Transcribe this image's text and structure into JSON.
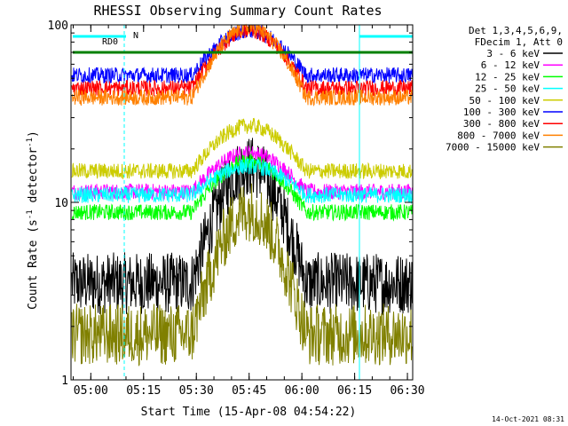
{
  "chart_data": {
    "type": "line",
    "title": "RHESSI Observing Summary Count Rates",
    "xlabel": "Start Time (15-Apr-08 04:54:22)",
    "ylabel_pre": "Count Rate (s",
    "ylabel_exp": "-1",
    "ylabel_post": " detector",
    "ylabel_close": ")",
    "y_scale": "log",
    "ylim": [
      1,
      100
    ],
    "xlim": [
      "04:54:22",
      "06:31:30"
    ],
    "x_ticks": [
      "05:00",
      "05:15",
      "05:30",
      "05:45",
      "06:00",
      "06:15",
      "06:30"
    ],
    "y_ticks": [
      "1",
      "10",
      "100"
    ],
    "legend_placement": "right",
    "legend_header": [
      "Det 1,3,4,5,6,9,",
      "FDecim 1, Att 0"
    ],
    "footer_date": "14-Oct-2021 08:31",
    "flags": [
      {
        "label": "N",
        "color": "#00ffff"
      },
      {
        "label": "RD0",
        "color": "#008000"
      }
    ],
    "series": [
      {
        "name": "3 - 6 keV",
        "color": "#000000",
        "low": 3.5,
        "high": 16.0
      },
      {
        "name": "6 - 12 keV",
        "color": "#ff00ff",
        "low": 11.5,
        "high": 19.0
      },
      {
        "name": "12 - 25 keV",
        "color": "#00ff00",
        "low": 8.8,
        "high": 17.0
      },
      {
        "name": "25 - 50 keV",
        "color": "#00ffff",
        "low": 11.0,
        "high": 16.0
      },
      {
        "name": "50 - 100 keV",
        "color": "#cccc00",
        "low": 15.0,
        "high": 27.0
      },
      {
        "name": "100 - 300 keV",
        "color": "#0000ff",
        "low": 52.0,
        "high": 93.0
      },
      {
        "name": "300 - 800 keV",
        "color": "#ff0000",
        "low": 44.0,
        "high": 93.0
      },
      {
        "name": "800 - 7000 keV",
        "color": "#ff8000",
        "low": 39.0,
        "high": 97.0
      },
      {
        "name": "7000 - 15000 keV",
        "color": "#808000",
        "low": 1.8,
        "high": 9.0
      }
    ]
  }
}
